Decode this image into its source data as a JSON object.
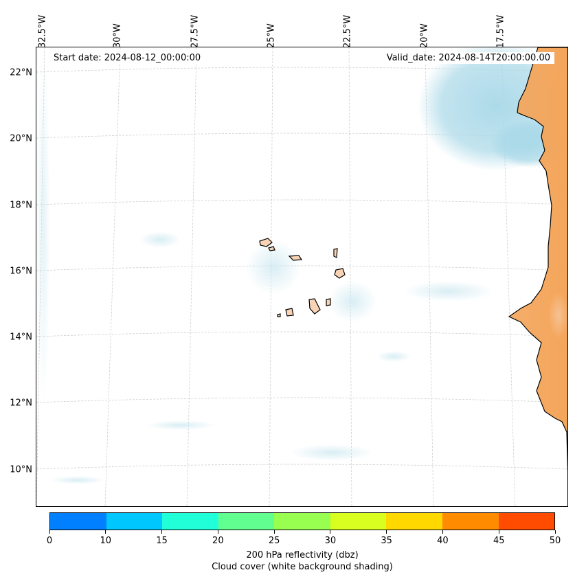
{
  "map": {
    "start_date": "Start date: 2024-08-12_00:00:00",
    "valid_date": "Valid_date: 2024-08-14T20:00:00.00",
    "lon_labels": [
      "32.5°W",
      "30°W",
      "27.5°W",
      "25°W",
      "22.5°W",
      "20°W",
      "17.5°W"
    ],
    "lat_labels": [
      "22°N",
      "20°N",
      "18°N",
      "16°N",
      "14°N",
      "12°N",
      "10°N"
    ],
    "land_color": "#f4a55a",
    "cloud_color": "#a8d8e8",
    "coastline_color": "#000000"
  },
  "colorbar": {
    "ticks": [
      "0",
      "10",
      "15",
      "20",
      "25",
      "30",
      "35",
      "40",
      "45",
      "50"
    ],
    "colors": [
      "#0080ff",
      "#00c8ff",
      "#20ffd8",
      "#60ff90",
      "#98ff50",
      "#d8ff20",
      "#ffd800",
      "#ff8c00",
      "#ff4c00"
    ],
    "label": "200 hPa reflectivity (dbz)",
    "sublabel": "Cloud cover (white background shading)"
  }
}
